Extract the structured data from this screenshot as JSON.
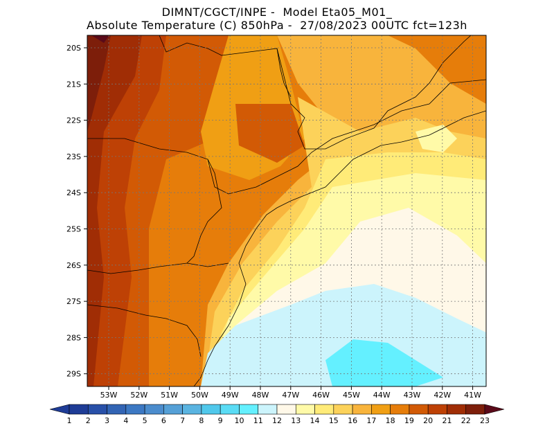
{
  "header": {
    "line1": "DIMNT/CGCT/INPE -  Model Eta05_M01_",
    "line2": "Absolute Temperature (C) 850hPa -  27/08/2023 00UTC fct=123h"
  },
  "map": {
    "lat_labels": [
      "20S",
      "21S",
      "22S",
      "23S",
      "24S",
      "25S",
      "26S",
      "27S",
      "28S",
      "29S"
    ],
    "lon_labels": [
      "53W",
      "52W",
      "51W",
      "50W",
      "49W",
      "48W",
      "47W",
      "46W",
      "45W",
      "44W",
      "43W",
      "42W",
      "41W"
    ]
  },
  "colorbar": {
    "labels": [
      "1",
      "2",
      "3",
      "4",
      "5",
      "6",
      "7",
      "8",
      "9",
      "10",
      "11",
      "12",
      "13",
      "14",
      "15",
      "16",
      "17",
      "18",
      "19",
      "20",
      "21",
      "22",
      "23"
    ],
    "colors": [
      "#1e3c96",
      "#2850a8",
      "#3264b4",
      "#3c78c3",
      "#4b8ccd",
      "#55a0d7",
      "#5ab4e1",
      "#50c8eb",
      "#5adcf5",
      "#64f0ff",
      "#ccf4fc",
      "#fff8e8",
      "#fffaa8",
      "#ffeb78",
      "#fcd25a",
      "#f8b43c",
      "#f09f14",
      "#e67d0a",
      "#d25a05",
      "#be4105",
      "#a02d05",
      "#7d1e0a",
      "#5a0a19"
    ],
    "end_left": "#1e3c96",
    "end_right": "#5a0a19"
  }
}
